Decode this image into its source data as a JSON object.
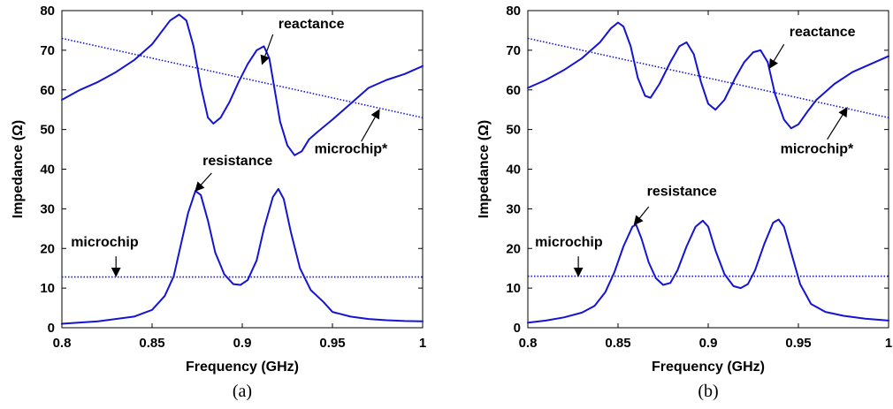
{
  "chart_data": [
    {
      "type": "line",
      "caption": "(a)",
      "xlabel": "Frequency (GHz)",
      "ylabel": "Impedance (Ω)",
      "xlim": [
        0.8,
        1.0
      ],
      "ylim": [
        0,
        80
      ],
      "xticks": [
        "0.8",
        "0.85",
        "0.9",
        "0.95",
        "1"
      ],
      "yticks": [
        "0",
        "10",
        "20",
        "30",
        "40",
        "50",
        "60",
        "70",
        "80"
      ],
      "grid": false,
      "series": [
        {
          "name": "reactance",
          "style": "solid",
          "color": "#1414d2",
          "points": [
            [
              0.8,
              57.5
            ],
            [
              0.81,
              60
            ],
            [
              0.82,
              62
            ],
            [
              0.83,
              64.5
            ],
            [
              0.84,
              67.5
            ],
            [
              0.85,
              71.5
            ],
            [
              0.86,
              77.5
            ],
            [
              0.865,
              79
            ],
            [
              0.869,
              77.5
            ],
            [
              0.873,
              71
            ],
            [
              0.877,
              61
            ],
            [
              0.881,
              53
            ],
            [
              0.884,
              51.5
            ],
            [
              0.888,
              53
            ],
            [
              0.893,
              57
            ],
            [
              0.898,
              62
            ],
            [
              0.903,
              66.5
            ],
            [
              0.908,
              70
            ],
            [
              0.912,
              71
            ],
            [
              0.915,
              68
            ],
            [
              0.918,
              60
            ],
            [
              0.921,
              52
            ],
            [
              0.925,
              46
            ],
            [
              0.929,
              43.5
            ],
            [
              0.933,
              44.5
            ],
            [
              0.937,
              47.5
            ],
            [
              0.942,
              49.5
            ],
            [
              0.95,
              52.5
            ],
            [
              0.96,
              56.5
            ],
            [
              0.97,
              60.5
            ],
            [
              0.98,
              62.5
            ],
            [
              0.99,
              64
            ],
            [
              1.0,
              66
            ]
          ]
        },
        {
          "name": "resistance",
          "style": "solid",
          "color": "#1414d2",
          "points": [
            [
              0.8,
              1
            ],
            [
              0.82,
              1.6
            ],
            [
              0.84,
              2.8
            ],
            [
              0.85,
              4.5
            ],
            [
              0.857,
              8
            ],
            [
              0.862,
              13
            ],
            [
              0.866,
              21
            ],
            [
              0.87,
              29
            ],
            [
              0.874,
              34.5
            ],
            [
              0.877,
              33.5
            ],
            [
              0.881,
              27
            ],
            [
              0.885,
              19
            ],
            [
              0.89,
              13.5
            ],
            [
              0.895,
              11
            ],
            [
              0.899,
              10.8
            ],
            [
              0.903,
              12
            ],
            [
              0.908,
              17
            ],
            [
              0.912,
              25
            ],
            [
              0.917,
              33
            ],
            [
              0.92,
              35
            ],
            [
              0.923,
              32.5
            ],
            [
              0.927,
              24
            ],
            [
              0.932,
              15
            ],
            [
              0.938,
              9.5
            ],
            [
              0.945,
              6.5
            ],
            [
              0.95,
              4
            ],
            [
              0.96,
              2.8
            ],
            [
              0.97,
              2.2
            ],
            [
              0.98,
              1.9
            ],
            [
              0.99,
              1.7
            ],
            [
              1.0,
              1.6
            ]
          ]
        },
        {
          "name": "microchip*",
          "style": "dotted",
          "color": "#1414d2",
          "points": [
            [
              0.8,
              73
            ],
            [
              1.0,
              53
            ]
          ]
        },
        {
          "name": "microchip",
          "style": "dotted",
          "color": "#1414d2",
          "points": [
            [
              0.8,
              12.8
            ],
            [
              1.0,
              12.8
            ]
          ]
        }
      ],
      "annotations": [
        {
          "text": "reactance",
          "text_at": [
            0.92,
            75.5
          ],
          "arrow_from": [
            0.917,
            74
          ],
          "arrow_to": [
            0.911,
            66.5
          ],
          "anchor": "start"
        },
        {
          "text": "microchip*",
          "text_at": [
            0.94,
            44
          ],
          "arrow_from": [
            0.966,
            47
          ],
          "arrow_to": [
            0.976,
            55
          ],
          "anchor": "start"
        },
        {
          "text": "resistance",
          "text_at": [
            0.878,
            41
          ],
          "arrow_from": [
            0.883,
            39
          ],
          "arrow_to": [
            0.874,
            34.5
          ],
          "anchor": "start"
        },
        {
          "text": "microchip",
          "text_at": [
            0.805,
            20.5
          ],
          "arrow_from": [
            0.83,
            18
          ],
          "arrow_to": [
            0.83,
            13
          ],
          "anchor": "start"
        }
      ]
    },
    {
      "type": "line",
      "caption": "(b)",
      "xlabel": "Frequency (GHz)",
      "ylabel": "Impedance (Ω)",
      "xlim": [
        0.8,
        1.0
      ],
      "ylim": [
        0,
        80
      ],
      "xticks": [
        "0.8",
        "0.85",
        "0.9",
        "0.95",
        "1"
      ],
      "yticks": [
        "0",
        "10",
        "20",
        "30",
        "40",
        "50",
        "60",
        "70",
        "80"
      ],
      "grid": false,
      "series": [
        {
          "name": "reactance",
          "style": "solid",
          "color": "#1414d2",
          "points": [
            [
              0.8,
              60.5
            ],
            [
              0.81,
              62.5
            ],
            [
              0.82,
              65
            ],
            [
              0.83,
              68
            ],
            [
              0.84,
              72
            ],
            [
              0.846,
              75.5
            ],
            [
              0.85,
              77
            ],
            [
              0.853,
              76
            ],
            [
              0.857,
              71
            ],
            [
              0.861,
              63
            ],
            [
              0.865,
              58.5
            ],
            [
              0.868,
              58
            ],
            [
              0.873,
              61.5
            ],
            [
              0.879,
              67
            ],
            [
              0.884,
              71
            ],
            [
              0.888,
              72
            ],
            [
              0.892,
              69
            ],
            [
              0.896,
              62
            ],
            [
              0.9,
              56.5
            ],
            [
              0.904,
              55
            ],
            [
              0.909,
              57.5
            ],
            [
              0.915,
              63
            ],
            [
              0.92,
              67
            ],
            [
              0.925,
              69.5
            ],
            [
              0.929,
              70
            ],
            [
              0.933,
              67
            ],
            [
              0.937,
              59
            ],
            [
              0.942,
              52.5
            ],
            [
              0.946,
              50.3
            ],
            [
              0.95,
              51.3
            ],
            [
              0.955,
              54.5
            ],
            [
              0.96,
              57.5
            ],
            [
              0.97,
              61.5
            ],
            [
              0.98,
              64.5
            ],
            [
              0.99,
              66.5
            ],
            [
              1.0,
              68.5
            ]
          ]
        },
        {
          "name": "resistance",
          "style": "solid",
          "color": "#1414d2",
          "points": [
            [
              0.8,
              1.3
            ],
            [
              0.81,
              1.8
            ],
            [
              0.82,
              2.6
            ],
            [
              0.83,
              3.8
            ],
            [
              0.837,
              5.5
            ],
            [
              0.843,
              9
            ],
            [
              0.848,
              14
            ],
            [
              0.853,
              20.5
            ],
            [
              0.858,
              25.5
            ],
            [
              0.86,
              26
            ],
            [
              0.863,
              22.5
            ],
            [
              0.867,
              16.5
            ],
            [
              0.871,
              12.5
            ],
            [
              0.875,
              10.8
            ],
            [
              0.879,
              11.3
            ],
            [
              0.883,
              14.5
            ],
            [
              0.888,
              20.5
            ],
            [
              0.893,
              25.5
            ],
            [
              0.897,
              27
            ],
            [
              0.9,
              25.5
            ],
            [
              0.904,
              19.5
            ],
            [
              0.909,
              13.5
            ],
            [
              0.914,
              10.5
            ],
            [
              0.918,
              10
            ],
            [
              0.922,
              11
            ],
            [
              0.926,
              14.5
            ],
            [
              0.931,
              21
            ],
            [
              0.936,
              26.5
            ],
            [
              0.939,
              27.3
            ],
            [
              0.942,
              25.5
            ],
            [
              0.946,
              19
            ],
            [
              0.951,
              11
            ],
            [
              0.957,
              6
            ],
            [
              0.965,
              4
            ],
            [
              0.975,
              3
            ],
            [
              0.987,
              2.3
            ],
            [
              1.0,
              1.8
            ]
          ]
        },
        {
          "name": "microchip*",
          "style": "dotted",
          "color": "#1414d2",
          "points": [
            [
              0.8,
              73
            ],
            [
              1.0,
              53
            ]
          ]
        },
        {
          "name": "microchip",
          "style": "dotted",
          "color": "#1414d2",
          "points": [
            [
              0.8,
              13
            ],
            [
              1.0,
              13
            ]
          ]
        }
      ],
      "annotations": [
        {
          "text": "reactance",
          "text_at": [
            0.945,
            73.5
          ],
          "arrow_from": [
            0.942,
            71.5
          ],
          "arrow_to": [
            0.934,
            65.5
          ],
          "anchor": "start"
        },
        {
          "text": "microchip*",
          "text_at": [
            0.94,
            44
          ],
          "arrow_from": [
            0.966,
            47.5
          ],
          "arrow_to": [
            0.977,
            55.5
          ],
          "anchor": "start"
        },
        {
          "text": "resistance",
          "text_at": [
            0.866,
            33.3
          ],
          "arrow_from": [
            0.867,
            30.5
          ],
          "arrow_to": [
            0.859,
            26
          ],
          "anchor": "start"
        },
        {
          "text": "microchip",
          "text_at": [
            0.804,
            20.5
          ],
          "arrow_from": [
            0.828,
            18
          ],
          "arrow_to": [
            0.828,
            13
          ],
          "anchor": "start"
        }
      ]
    }
  ]
}
